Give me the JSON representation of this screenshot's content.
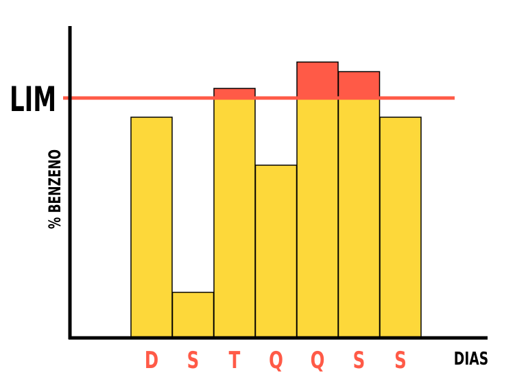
{
  "chart_data": {
    "type": "bar",
    "categories": [
      "D",
      "S",
      "T",
      "Q",
      "Q",
      "S",
      "S"
    ],
    "values": [
      9.2,
      1.9,
      10.4,
      7.2,
      11.5,
      11.1,
      9.2
    ],
    "limit": 10.0,
    "limit_label": "LIM",
    "xlabel": "DIAS",
    "ylabel": "% BENZENO",
    "ylim": [
      0,
      13
    ],
    "grid": false,
    "colors": {
      "bar": "#FDD83A",
      "excess": "#FF5A47",
      "limit_line": "#FF5A47",
      "tick_label": "#FF5A47",
      "axis": "#000000",
      "bar_border": "#000000"
    }
  }
}
